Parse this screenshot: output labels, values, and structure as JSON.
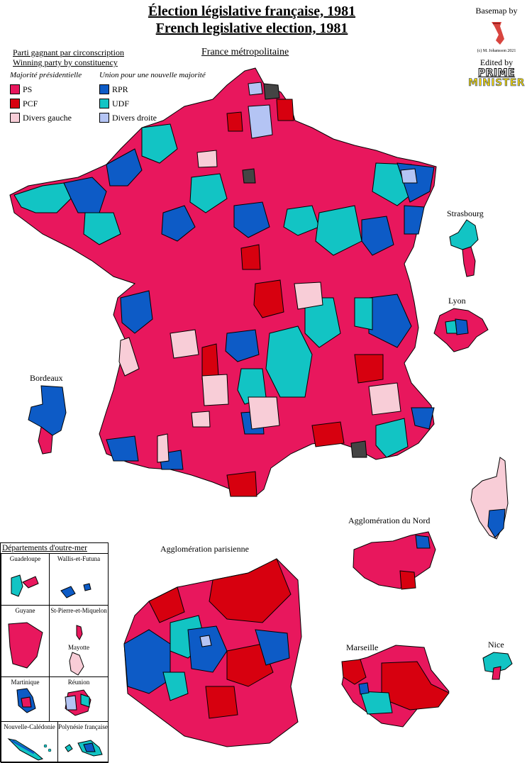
{
  "title": {
    "line1": "Élection législative française, 1981",
    "line2": "French legislative election, 1981"
  },
  "subtitle": {
    "fr": "Parti gagnant par circonscription",
    "en": "Winning party by constituency"
  },
  "metro_label": "France métropolitaine",
  "legend": {
    "group_left": "Majorité présidentielle",
    "group_right": "Union pour une nouvelle majorité",
    "items_left": [
      {
        "label": "PS",
        "color": "#e8175d"
      },
      {
        "label": "PCF",
        "color": "#d7000f"
      },
      {
        "label": "Divers gauche",
        "color": "#f8cdd7"
      }
    ],
    "items_right": [
      {
        "label": "RPR",
        "color": "#0d5bc6"
      },
      {
        "label": "UDF",
        "color": "#12c4c4"
      },
      {
        "label": "Divers droite",
        "color": "#b4c4f4"
      }
    ]
  },
  "credit": {
    "basemap": "Basemap by",
    "copyright": "(c) M. Johansson 2021",
    "edited": "Edited by",
    "logo_line1": "PRIME",
    "logo_line2": "MINISTER"
  },
  "insets": {
    "strasbourg": "Strasbourg",
    "lyon": "Lyon",
    "bordeaux": "Bordeaux",
    "nord": "Agglomération du Nord",
    "paris": "Agglomération parisienne",
    "marseille": "Marseille",
    "nice": "Nice"
  },
  "outre_mer": {
    "title": "Départements d'outre-mer",
    "guadeloupe": "Guadeloupe",
    "wallis": "Wallis-et-Futuna",
    "guyane": "Guyane",
    "spm": "St-Pierre-et-Miquelon",
    "mayotte": "Mayotte",
    "martinique": "Martinique",
    "reunion": "Réunion",
    "nc": "Nouvelle-Calédonie",
    "polynesie": "Polynésie française"
  },
  "colors": {
    "ps": "#e8175d",
    "pcf": "#d7000f",
    "dvg": "#f8cdd7",
    "rpr": "#0d5bc6",
    "udf": "#12c4c4",
    "dvd": "#b4c4f4",
    "other": "#444444"
  }
}
